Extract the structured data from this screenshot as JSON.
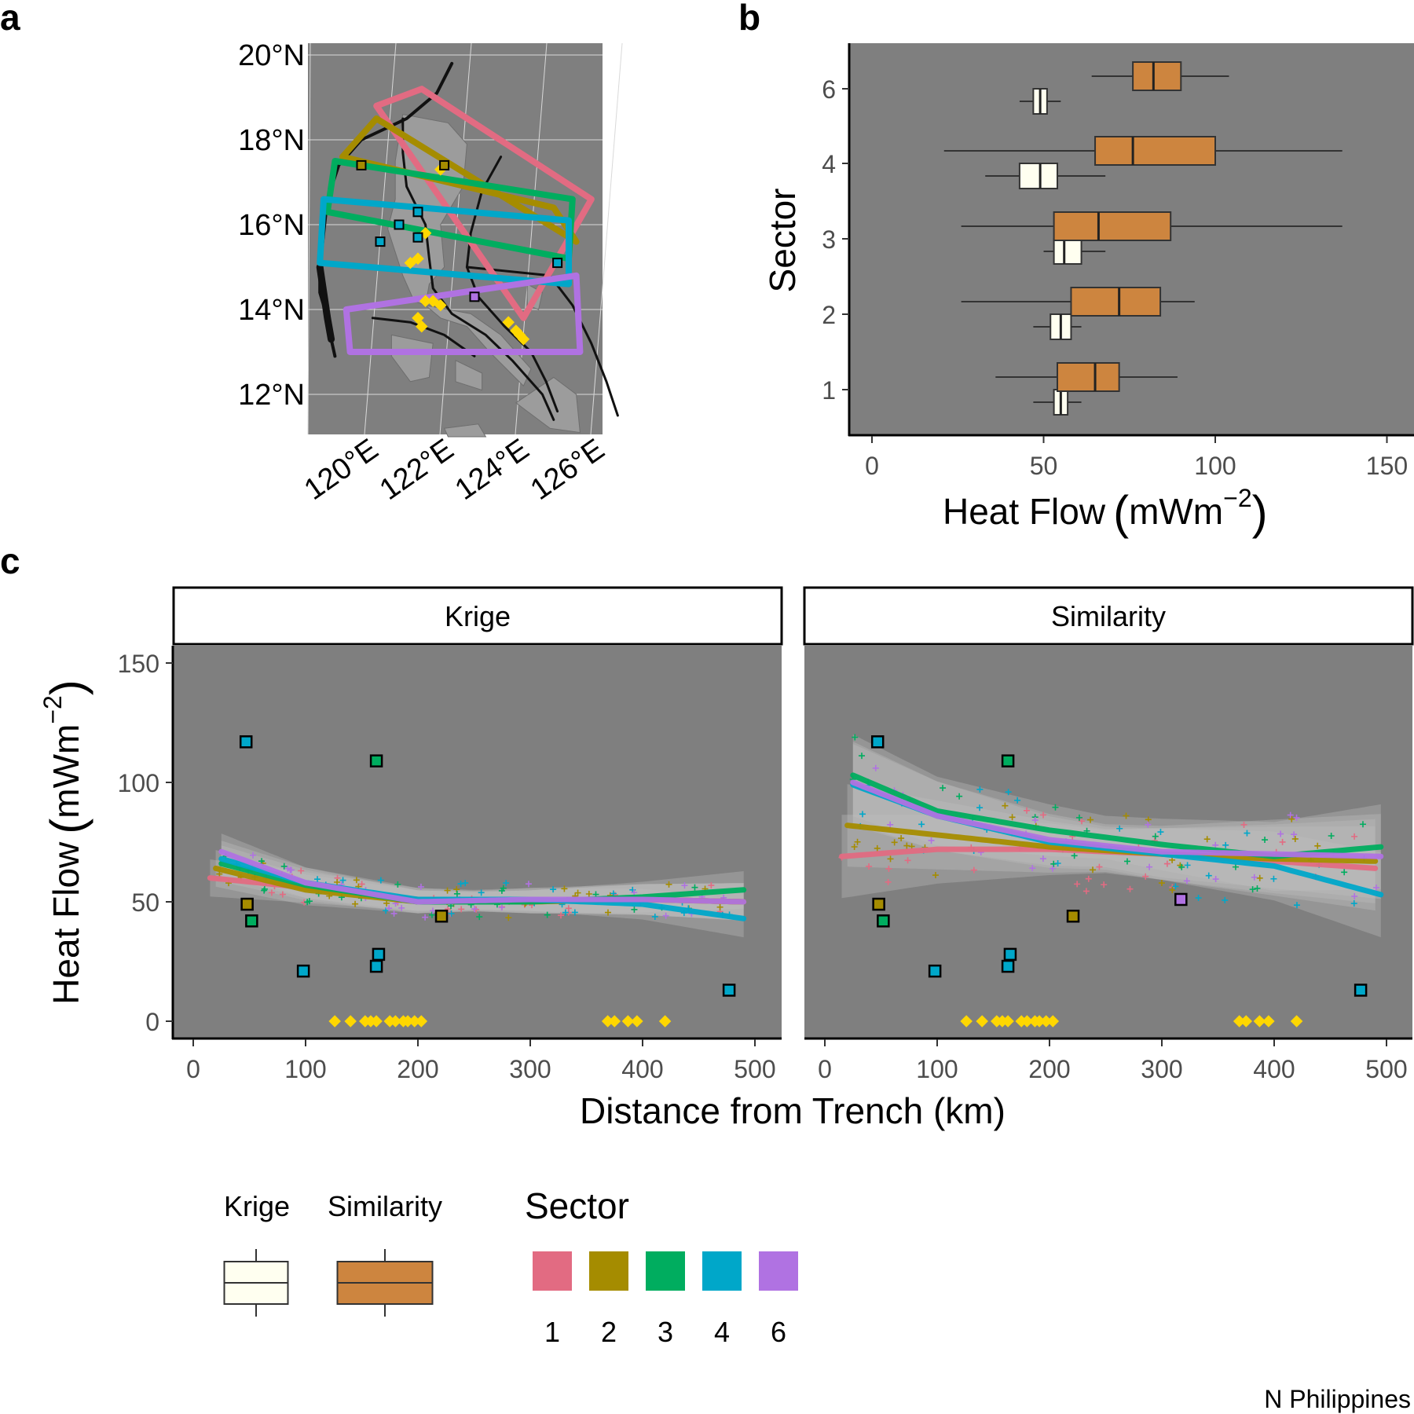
{
  "colors": {
    "panel_bg": "#7f7f7f",
    "grid": "#d9d9d9",
    "land": "#9c9c9c",
    "krige_fill": "#fffff0",
    "similarity_fill": "#cd853f",
    "yellow": "#ffd700",
    "sectors": {
      "1": "#e26b82",
      "2": "#a58c00",
      "3": "#00ad5f",
      "4": "#00a7c9",
      "6": "#b072e2"
    }
  },
  "panel_a": {
    "letter": "a",
    "lat_labels": [
      "20°N",
      "18°N",
      "16°N",
      "14°N",
      "12°N"
    ],
    "lon_labels": [
      "120°E",
      "122°E",
      "124°E",
      "126°E"
    ]
  },
  "panel_b": {
    "letter": "b",
    "xlabel": "Heat Flow",
    "xunit": "mWm",
    "xunit_exp": "−2",
    "ylabel": "Sector"
  },
  "panel_c": {
    "letter": "c",
    "facets": [
      "Krige",
      "Similarity"
    ],
    "ylabel": "Heat Flow",
    "yunit": "mWm",
    "yunit_exp": "−2",
    "xlabel": "Distance from Trench (km)"
  },
  "legend": {
    "methods": [
      {
        "label": "Krige",
        "color": "#fffff0"
      },
      {
        "label": "Similarity",
        "color": "#cd853f"
      }
    ],
    "sector_title": "Sector",
    "sector_labels": [
      "1",
      "2",
      "3",
      "4",
      "6"
    ]
  },
  "region_label": "N Philippines",
  "chart_data": [
    {
      "type": "map",
      "panel": "a",
      "lat_range": [
        11,
        20
      ],
      "lon_range": [
        119,
        126
      ],
      "sector_boxes": [
        {
          "sector": "1",
          "corners": [
            [
              119.9,
              18.8
            ],
            [
              121.1,
              19.2
            ],
            [
              125.6,
              16.6
            ],
            [
              123.8,
              13.8
            ]
          ]
        },
        {
          "sector": "2",
          "corners": [
            [
              119.0,
              17.6
            ],
            [
              119.9,
              18.5
            ],
            [
              125.2,
              15.6
            ],
            [
              124.6,
              16.4
            ]
          ]
        },
        {
          "sector": "3",
          "corners": [
            [
              118.8,
              17.5
            ],
            [
              125.1,
              16.6
            ],
            [
              125.0,
              15.2
            ],
            [
              118.6,
              16.3
            ]
          ]
        },
        {
          "sector": "4",
          "corners": [
            [
              118.5,
              16.6
            ],
            [
              125.0,
              16.1
            ],
            [
              125.0,
              14.6
            ],
            [
              118.4,
              15.1
            ]
          ]
        },
        {
          "sector": "6",
          "corners": [
            [
              119.1,
              14.0
            ],
            [
              125.2,
              14.8
            ],
            [
              125.3,
              13.0
            ],
            [
              119.2,
              13.0
            ]
          ]
        }
      ],
      "stations": [
        {
          "lon": 119.5,
          "lat": 17.4,
          "sector": "2"
        },
        {
          "lon": 120.5,
          "lat": 16.0,
          "sector": "4"
        },
        {
          "lon": 120.0,
          "lat": 15.6,
          "sector": "4"
        },
        {
          "lon": 121.0,
          "lat": 15.7,
          "sector": "4"
        },
        {
          "lon": 121.0,
          "lat": 16.3,
          "sector": "4"
        },
        {
          "lon": 121.7,
          "lat": 17.4,
          "sector": "2"
        },
        {
          "lon": 124.7,
          "lat": 15.1,
          "sector": "4"
        },
        {
          "lon": 122.5,
          "lat": 14.3,
          "sector": "6"
        }
      ],
      "yellow_points": [
        {
          "lon": 121.6,
          "lat": 17.3
        },
        {
          "lon": 121.2,
          "lat": 15.8
        },
        {
          "lon": 121.0,
          "lat": 15.2
        },
        {
          "lon": 120.8,
          "lat": 15.1
        },
        {
          "lon": 121.2,
          "lat": 14.2
        },
        {
          "lon": 121.4,
          "lat": 14.2
        },
        {
          "lon": 121.6,
          "lat": 14.1
        },
        {
          "lon": 121.0,
          "lat": 13.8
        },
        {
          "lon": 121.1,
          "lat": 13.6
        },
        {
          "lon": 123.4,
          "lat": 13.7
        },
        {
          "lon": 123.6,
          "lat": 13.5
        },
        {
          "lon": 123.7,
          "lat": 13.4
        },
        {
          "lon": 123.8,
          "lat": 13.3
        }
      ]
    },
    {
      "type": "boxplot",
      "panel": "b",
      "xlim": [
        -7,
        157
      ],
      "xticks": [
        0,
        50,
        100,
        150
      ],
      "categories": [
        "1",
        "2",
        "3",
        "4",
        "6"
      ],
      "series": [
        {
          "name": "Krige",
          "boxes": [
            {
              "sector": "1",
              "min": 47,
              "q1": 53,
              "median": 55,
              "q3": 57,
              "max": 61
            },
            {
              "sector": "2",
              "min": 47,
              "q1": 52,
              "median": 55,
              "q3": 58,
              "max": 61
            },
            {
              "sector": "3",
              "min": 50,
              "q1": 53,
              "median": 56,
              "q3": 61,
              "max": 68
            },
            {
              "sector": "4",
              "min": 33,
              "q1": 43,
              "median": 49,
              "q3": 54,
              "max": 68
            },
            {
              "sector": "6",
              "min": 43,
              "q1": 47,
              "median": 49,
              "q3": 51,
              "max": 55
            }
          ]
        },
        {
          "name": "Similarity",
          "boxes": [
            {
              "sector": "1",
              "min": 36,
              "q1": 54,
              "median": 65,
              "q3": 72,
              "max": 89
            },
            {
              "sector": "2",
              "min": 26,
              "q1": 58,
              "median": 72,
              "q3": 84,
              "max": 94
            },
            {
              "sector": "3",
              "min": 26,
              "q1": 53,
              "median": 66,
              "q3": 87,
              "max": 137
            },
            {
              "sector": "4",
              "min": 21,
              "q1": 65,
              "median": 76,
              "q3": 100,
              "max": 137
            },
            {
              "sector": "6",
              "min": 64,
              "q1": 76,
              "median": 82,
              "q3": 90,
              "max": 104
            }
          ]
        }
      ]
    },
    {
      "type": "scatter",
      "panel": "c",
      "xlim": [
        -20,
        520
      ],
      "ylim": [
        -7,
        157
      ],
      "xticks": [
        0,
        100,
        200,
        300,
        400,
        500
      ],
      "yticks": [
        0,
        50,
        100,
        150
      ],
      "observed": [
        {
          "x": 47,
          "y": 117,
          "sector": "4"
        },
        {
          "x": 163,
          "y": 109,
          "sector": "3"
        },
        {
          "x": 48,
          "y": 49,
          "sector": "2"
        },
        {
          "x": 52,
          "y": 42,
          "sector": "3"
        },
        {
          "x": 221,
          "y": 44,
          "sector": "2"
        },
        {
          "x": 165,
          "y": 28,
          "sector": "4"
        },
        {
          "x": 163,
          "y": 23,
          "sector": "4"
        },
        {
          "x": 98,
          "y": 21,
          "sector": "4"
        },
        {
          "x": 477,
          "y": 13,
          "sector": "4"
        }
      ],
      "observed_similarity_only": [
        {
          "x": 317,
          "y": 51,
          "sector": "6"
        }
      ],
      "zero_points_x": [
        126,
        140,
        153,
        158,
        163,
        175,
        180,
        187,
        191,
        197,
        203,
        369,
        375,
        387,
        395,
        420
      ],
      "facets": [
        {
          "name": "Krige",
          "smooth": [
            {
              "sector": "1",
              "x": [
                15,
                100,
                200,
                300,
                400,
                490
              ],
              "y": [
                60,
                56,
                51,
                50,
                51,
                50
              ]
            },
            {
              "sector": "2",
              "x": [
                20,
                100,
                200,
                300,
                400,
                490
              ],
              "y": [
                64,
                55,
                50,
                50,
                51,
                50
              ]
            },
            {
              "sector": "3",
              "x": [
                25,
                100,
                200,
                300,
                400,
                490
              ],
              "y": [
                66,
                57,
                50,
                50,
                52,
                55
              ]
            },
            {
              "sector": "4",
              "x": [
                25,
                100,
                200,
                300,
                400,
                490
              ],
              "y": [
                68,
                58,
                51,
                51,
                49,
                43
              ]
            },
            {
              "sector": "6",
              "x": [
                25,
                100,
                200,
                300,
                400,
                490
              ],
              "y": [
                71,
                58,
                50,
                51,
                51,
                50
              ]
            }
          ]
        },
        {
          "name": "Similarity",
          "smooth": [
            {
              "sector": "1",
              "x": [
                15,
                100,
                200,
                300,
                400,
                490
              ],
              "y": [
                69,
                72,
                72,
                70,
                67,
                64
              ]
            },
            {
              "sector": "2",
              "x": [
                20,
                100,
                200,
                300,
                400,
                490
              ],
              "y": [
                82,
                78,
                73,
                70,
                68,
                67
              ]
            },
            {
              "sector": "3",
              "x": [
                25,
                100,
                200,
                300,
                400,
                495
              ],
              "y": [
                103,
                88,
                80,
                74,
                69,
                73
              ]
            },
            {
              "sector": "4",
              "x": [
                25,
                100,
                200,
                300,
                400,
                495
              ],
              "y": [
                99,
                86,
                75,
                70,
                65,
                53
              ]
            },
            {
              "sector": "6",
              "x": [
                25,
                100,
                200,
                300,
                400,
                495
              ],
              "y": [
                100,
                86,
                76,
                71,
                70,
                69
              ]
            }
          ]
        }
      ]
    }
  ]
}
